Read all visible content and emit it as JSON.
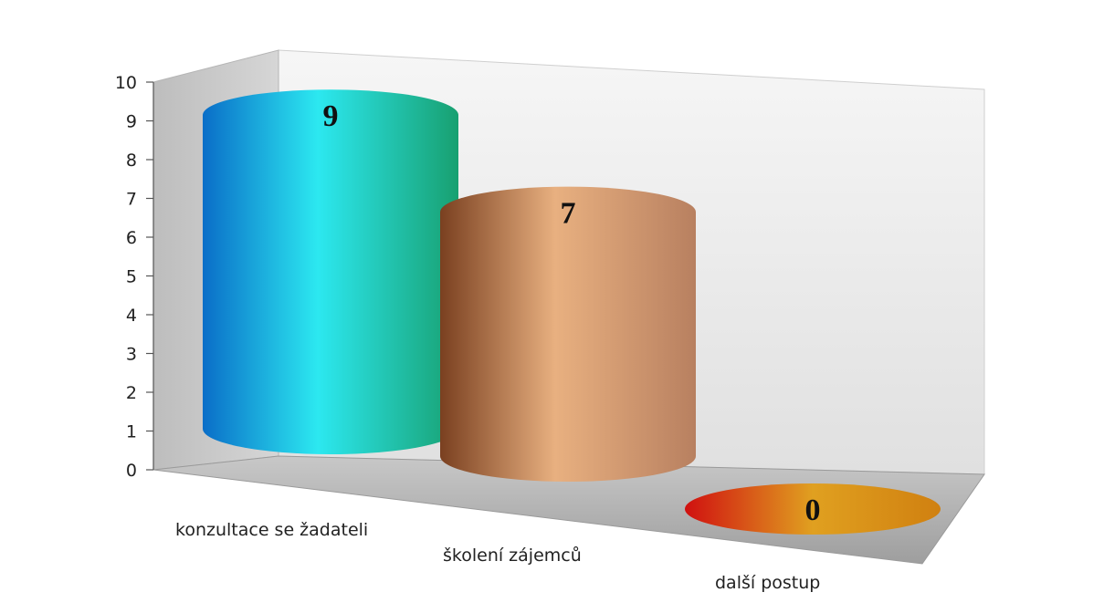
{
  "chart_data": {
    "type": "bar",
    "style": "3d-cylinder",
    "title": "",
    "categories": [
      "konzultace se žadateli",
      "školení zájemců",
      "další postup"
    ],
    "values": [
      9,
      7,
      0
    ],
    "data_labels": [
      "9",
      "7",
      "0"
    ],
    "ylim": [
      0,
      10
    ],
    "yticks": [
      "0",
      "1",
      "2",
      "3",
      "4",
      "5",
      "6",
      "7",
      "8",
      "9",
      "10"
    ],
    "grid": false,
    "legend": "none",
    "colors": [
      {
        "light": "#2ce8f0",
        "dark": "#0a6ec8",
        "edge": "#18a070"
      },
      {
        "light": "#e8b080",
        "dark": "#7a4020",
        "edge": "#b88060"
      },
      {
        "light": "#e0a020",
        "dark": "#d01010",
        "edge": "#d08010"
      }
    ]
  }
}
